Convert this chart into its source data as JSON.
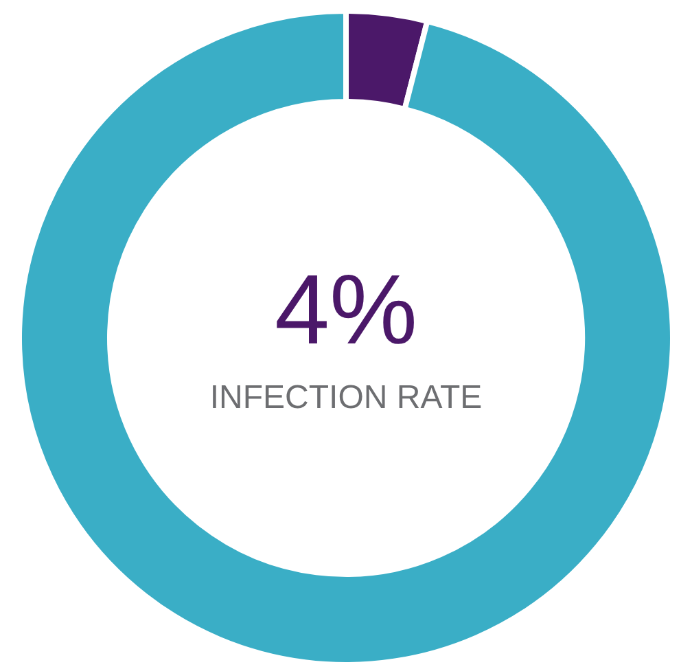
{
  "chart_data": {
    "type": "donut",
    "categories": [
      null,
      null
    ],
    "values": [
      4,
      96
    ],
    "colors": [
      "#4b1869",
      "#3aaec6"
    ],
    "annotations": [
      "4%",
      "INFECTION RATE"
    ]
  }
}
